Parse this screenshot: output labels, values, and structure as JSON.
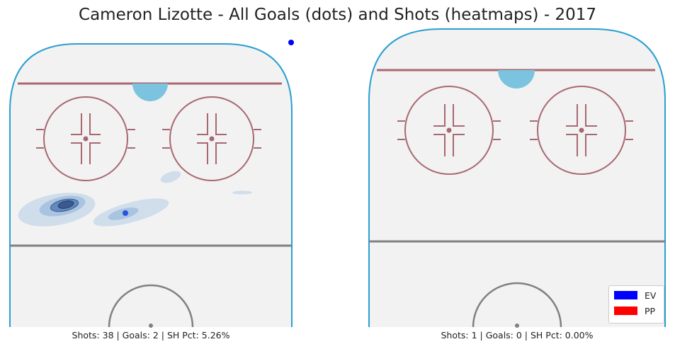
{
  "title": "Cameron Lizotte - All Goals (dots) and Shots (heatmaps) - 2017",
  "legend": [
    {
      "label": "EV",
      "color": "#0000ff"
    },
    {
      "label": "PP",
      "color": "#ff0000"
    }
  ],
  "colors": {
    "ice": "#f2f2f2",
    "boards": "#2a9fd0",
    "red_line": "#a86870",
    "crease": "#7cc3e0",
    "heat": "#1f6fc2"
  },
  "chart_data": [
    {
      "type": "heatmap",
      "panel": "left",
      "caption": "Shots: 38 | Goals: 2 | SH Pct: 5.26%",
      "stats": {
        "shots": 38,
        "goals": 2,
        "sh_pct": 5.26
      }
    },
    {
      "type": "heatmap",
      "panel": "right",
      "caption": "Shots: 1 | Goals: 0 | SH Pct: 0.00%",
      "stats": {
        "shots": 1,
        "goals": 0,
        "sh_pct": 0.0
      }
    }
  ]
}
